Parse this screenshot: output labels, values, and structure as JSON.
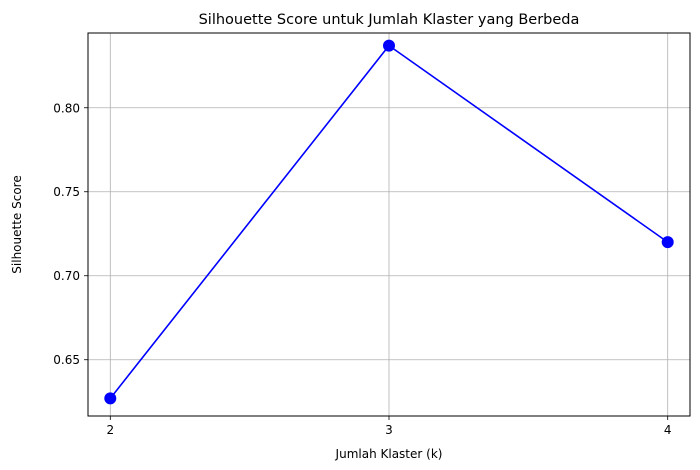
{
  "chart_data": {
    "type": "line",
    "title": "Silhouette Score untuk Jumlah Klaster yang Berbeda",
    "xlabel": "Jumlah Klaster (k)",
    "ylabel": "Silhouette Score",
    "x": [
      2,
      3,
      4
    ],
    "x_tick_labels": [
      "2",
      "3",
      "4"
    ],
    "y_ticks": [
      0.65,
      0.7,
      0.75,
      0.8
    ],
    "y_tick_labels": [
      "0.65",
      "0.70",
      "0.75",
      "0.80"
    ],
    "xlim": [
      1.92,
      4.08
    ],
    "ylim": [
      0.6165,
      0.8445
    ],
    "grid": true,
    "series": [
      {
        "values": [
          0.627,
          0.837,
          0.72
        ],
        "color": "#0000ff",
        "marker": "circle"
      }
    ]
  }
}
